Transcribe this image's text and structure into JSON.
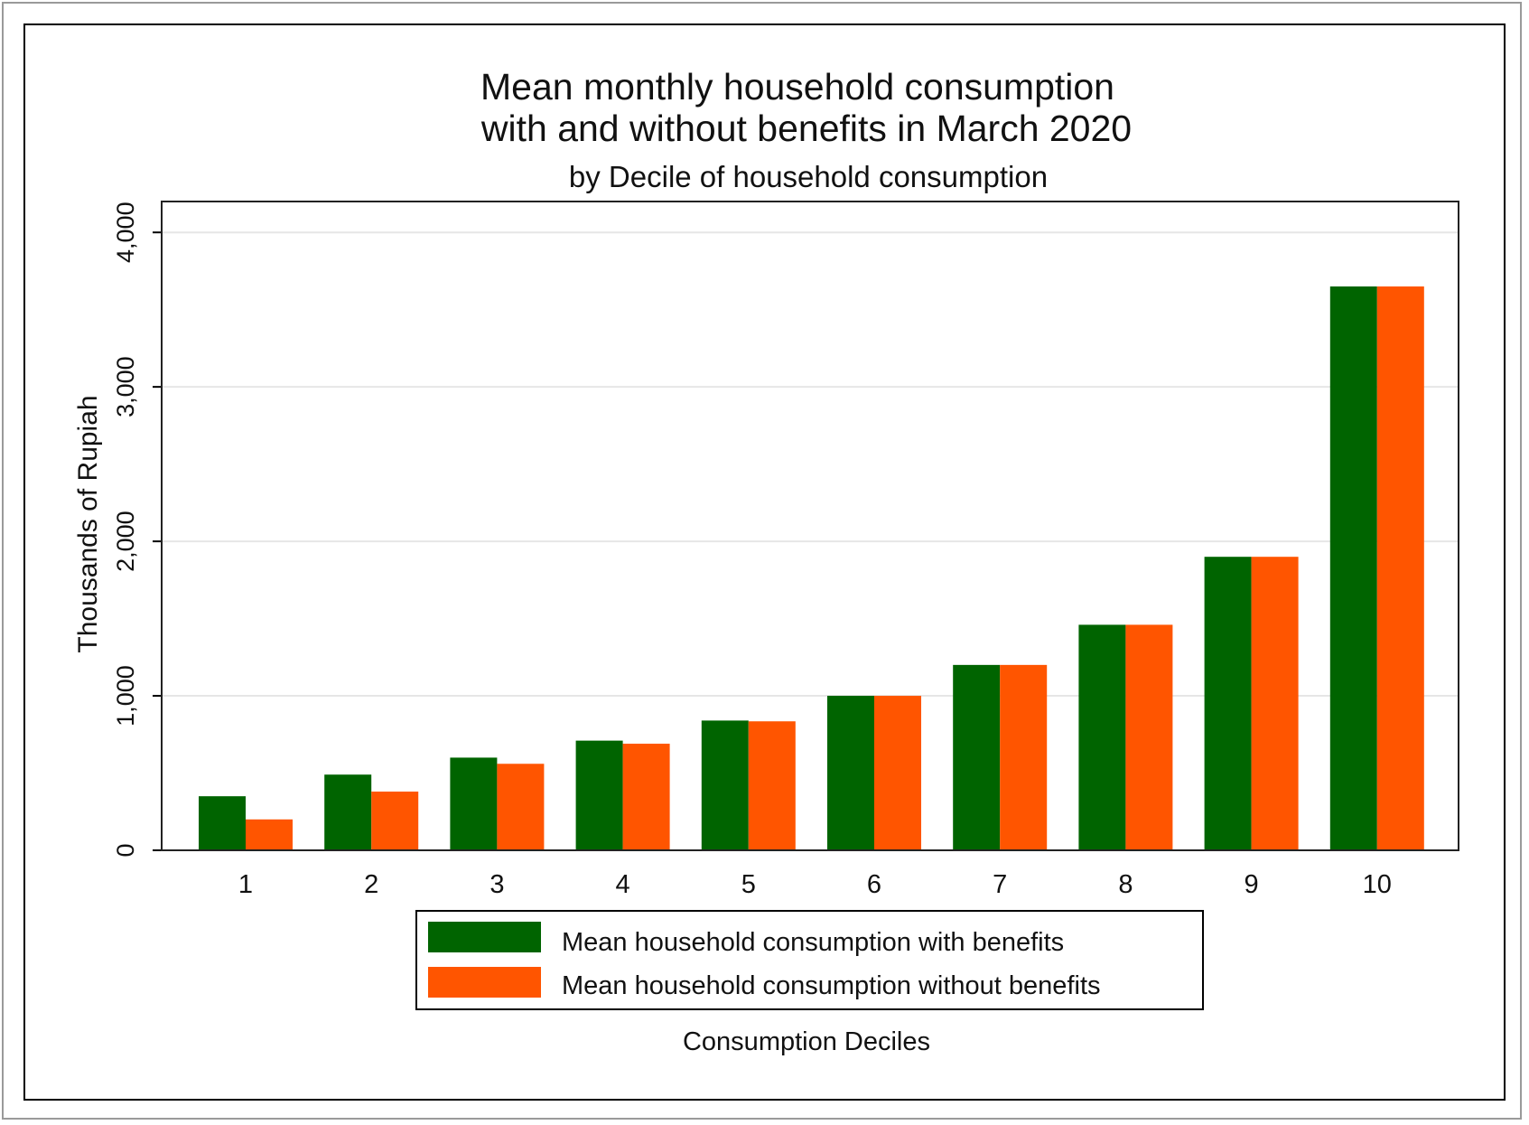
{
  "chart_data": {
    "type": "bar",
    "title_line1": "Mean monthly household consumption",
    "title_line2": "with and without benefits in March 2020",
    "subtitle": "by Decile of household consumption",
    "xlabel": "Consumption Deciles",
    "ylabel": "Thousands of Rupiah",
    "categories": [
      "1",
      "2",
      "3",
      "4",
      "5",
      "6",
      "7",
      "8",
      "9",
      "10"
    ],
    "ylim": [
      0,
      4200
    ],
    "yticks": [
      0,
      1000,
      2000,
      3000,
      4000
    ],
    "ytick_labels": [
      "0",
      "1,000",
      "2,000",
      "3,000",
      "4,000"
    ],
    "grid": true,
    "legend_position": "bottom",
    "series": [
      {
        "name": "Mean household consumption with benefits",
        "color": "#006400",
        "values": [
          350,
          490,
          600,
          710,
          840,
          1000,
          1200,
          1460,
          1900,
          3650
        ]
      },
      {
        "name": "Mean household consumption without benefits",
        "color": "#ff5500",
        "values": [
          200,
          380,
          560,
          690,
          835,
          1000,
          1200,
          1460,
          1900,
          3650
        ]
      }
    ]
  }
}
